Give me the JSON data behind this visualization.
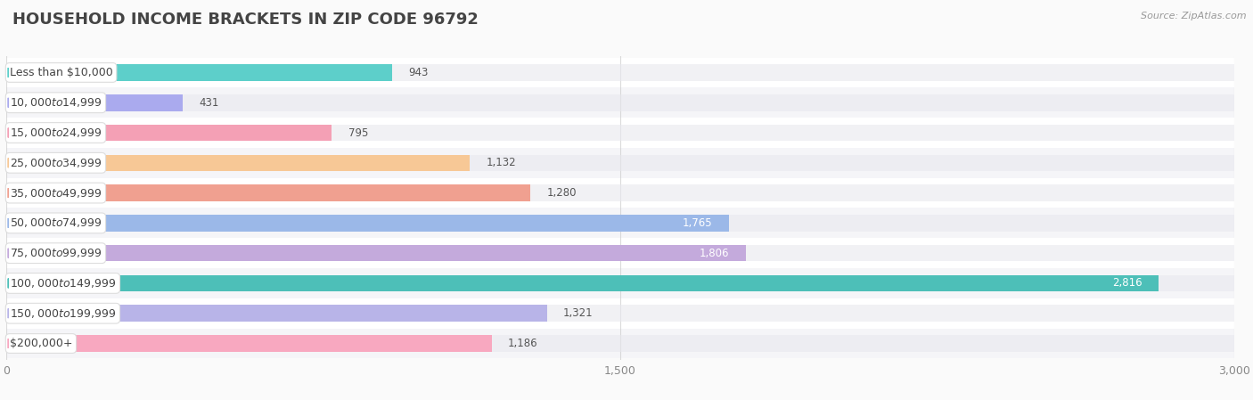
{
  "title": "HOUSEHOLD INCOME BRACKETS IN ZIP CODE 96792",
  "source": "Source: ZipAtlas.com",
  "categories": [
    "Less than $10,000",
    "$10,000 to $14,999",
    "$15,000 to $24,999",
    "$25,000 to $34,999",
    "$35,000 to $49,999",
    "$50,000 to $74,999",
    "$75,000 to $99,999",
    "$100,000 to $149,999",
    "$150,000 to $199,999",
    "$200,000+"
  ],
  "values": [
    943,
    431,
    795,
    1132,
    1280,
    1765,
    1806,
    2816,
    1321,
    1186
  ],
  "bar_colors": [
    "#5DCFCA",
    "#AAAAEE",
    "#F4A0B5",
    "#F7C896",
    "#F0A090",
    "#9BB8E8",
    "#C4AADC",
    "#4DBFB8",
    "#B8B4E8",
    "#F8A8C0"
  ],
  "bar_bg_color": "#E8E8EE",
  "row_colors": [
    "#FFFFFF",
    "#F5F5F8"
  ],
  "xlim": [
    0,
    3000
  ],
  "xticks": [
    0,
    1500,
    3000
  ],
  "bg_color": "#FAFAFA",
  "title_fontsize": 13,
  "label_fontsize": 9,
  "value_fontsize": 8.5,
  "bar_height": 0.55,
  "label_color": "#444444",
  "value_color_dark": "#555555",
  "value_color_light": "#FFFFFF",
  "value_inside_threshold": 1700
}
